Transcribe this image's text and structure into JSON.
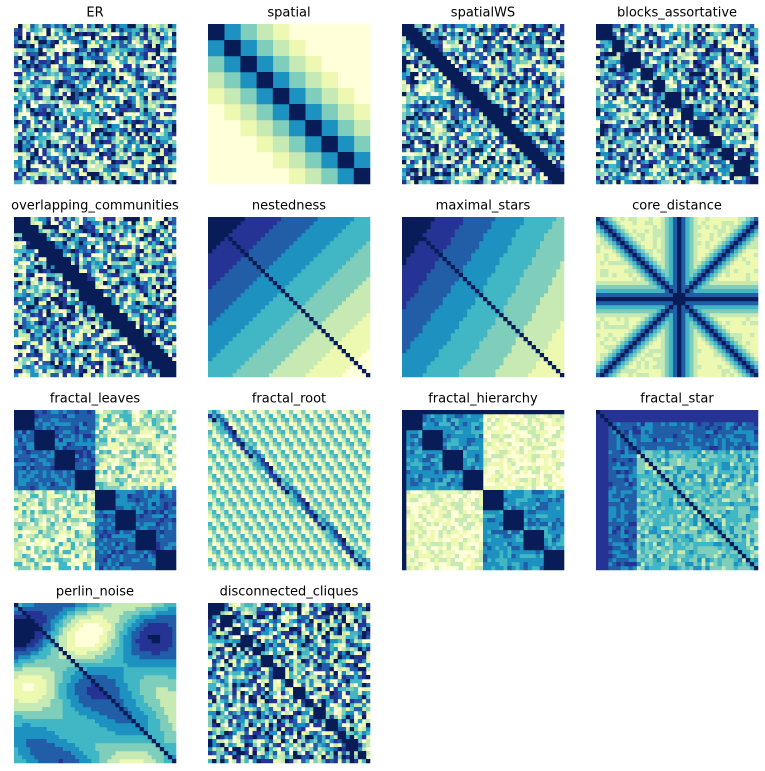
{
  "titles": [
    "ER",
    "spatial",
    "spatialWS",
    "blocks_assortative",
    "overlapping_communities",
    "nestedness",
    "maximal_stars",
    "core_distance",
    "fractal_leaves",
    "fractal_root",
    "fractal_hierarchy",
    "fractal_star",
    "perlin_noise",
    "disconnected_cliques"
  ]
}
